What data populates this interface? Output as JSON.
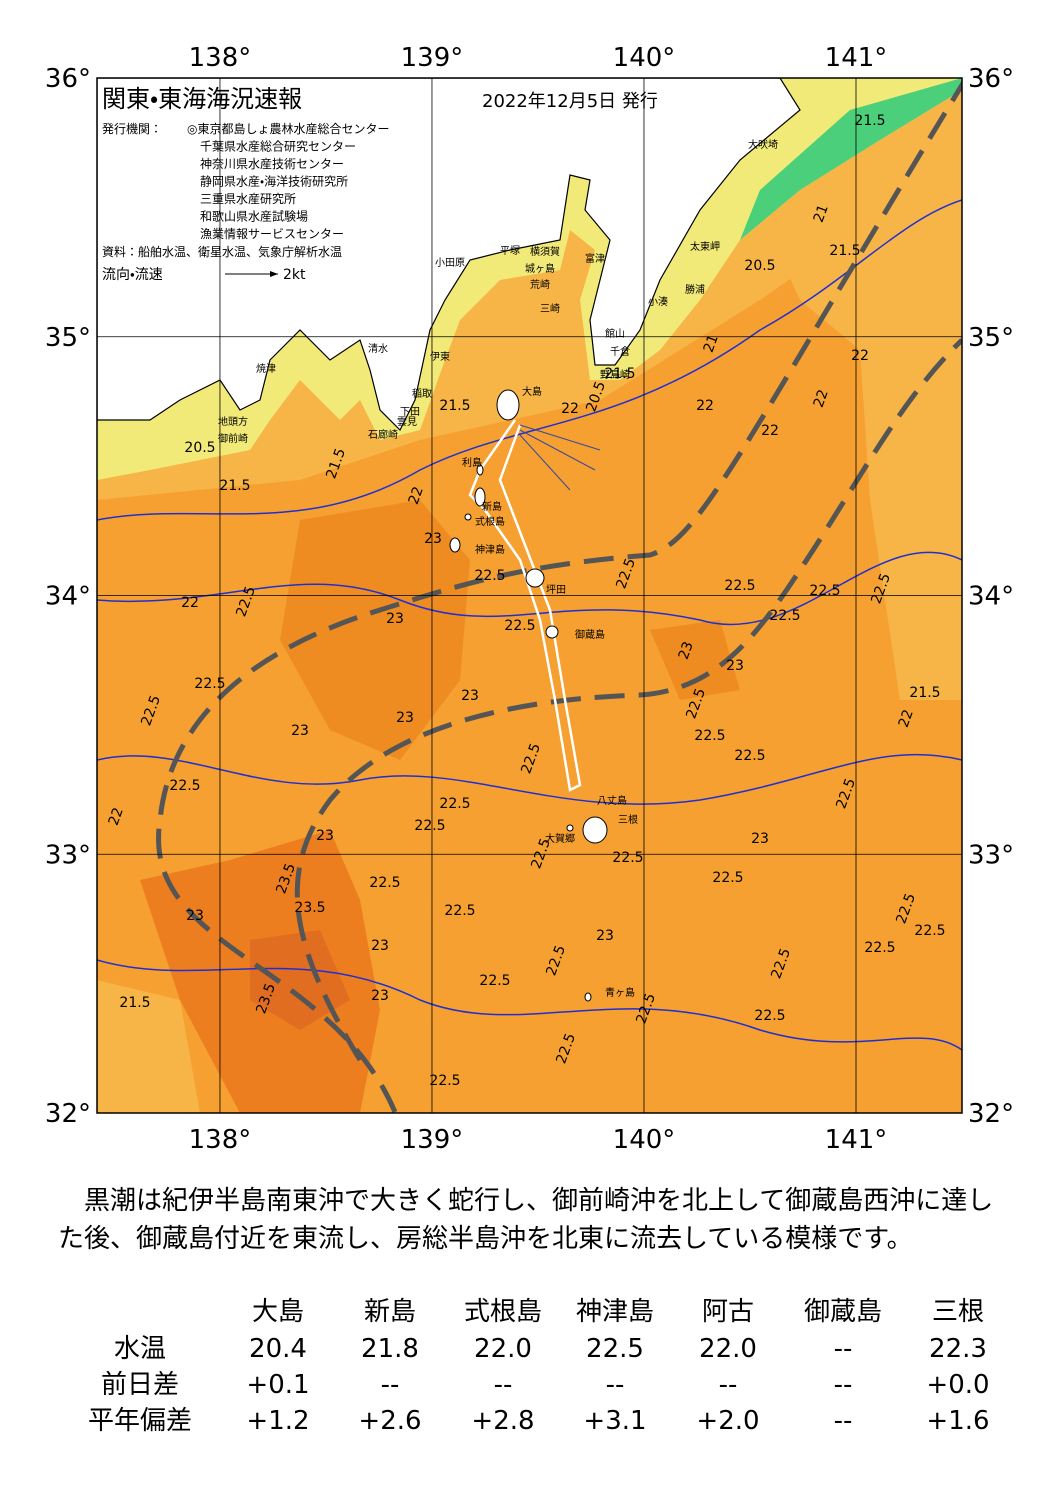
{
  "header": {
    "title": "関東・東海海況速報",
    "date": "2022年12月5日 発行",
    "issuer_label": "発行機関：",
    "issuers": [
      "◎東京都島しょ農林水産総合センター",
      "千葉県水産総合研究センター",
      "神奈川県水産技術センター",
      "静岡県水産・海洋技術研究所",
      "三重県水産研究所",
      "和歌山県水産試験場",
      "漁業情報サービスセンター"
    ],
    "source": "資料：船舶水温、衛星水温、気象庁解析水温",
    "legend_label": "流向・流速",
    "legend_speed": "2kt"
  },
  "map": {
    "lon_range": [
      137.42,
      141.5
    ],
    "lat_range": [
      32,
      36
    ],
    "grid": true,
    "lon_ticks": [
      {
        "value": 138,
        "label": "138°"
      },
      {
        "value": 139,
        "label": "139°"
      },
      {
        "value": 140,
        "label": "140°"
      },
      {
        "value": 141,
        "label": "141°"
      }
    ],
    "lat_ticks": [
      {
        "value": 32,
        "label": "32°"
      },
      {
        "value": 33,
        "label": "33°"
      },
      {
        "value": 34,
        "label": "34°"
      },
      {
        "value": 35,
        "label": "35°"
      },
      {
        "value": 36,
        "label": "36°"
      }
    ],
    "places": [
      "大吠埼",
      "太東岬",
      "勝浦",
      "小湊",
      "館山",
      "千倉",
      "野島崎",
      "富津",
      "横須賀",
      "城ヶ島",
      "荒崎",
      "三崎",
      "平塚",
      "小田原",
      "伊東",
      "稲取",
      "下田",
      "雲見",
      "石廊崎",
      "清水",
      "焼津",
      "地頭方",
      "御前崎",
      "大島",
      "利島",
      "新島",
      "式根島",
      "神津島",
      "坪田",
      "御蔵島",
      "八丈島",
      "三根",
      "大賀郷",
      "青ヶ島"
    ],
    "contour_labels": [
      21.5,
      21,
      20.5,
      21.5,
      21,
      22,
      21.5,
      20.5,
      22,
      22,
      22,
      22,
      21.5,
      21.5,
      20.5,
      21.5,
      22,
      23,
      22.5,
      22.5,
      22.5,
      22.5,
      22.5,
      22.5,
      22,
      22.5,
      23,
      22.5,
      23,
      23,
      22.5,
      22.5,
      23,
      21.5,
      22,
      23,
      23,
      22.5,
      22.5,
      22.5,
      22.5,
      22.5,
      22.5,
      22,
      23,
      22.5,
      22.5,
      22.5,
      23,
      22.5,
      22.5,
      22.5,
      23.5,
      23,
      23.5,
      22.5,
      22.5,
      22.5,
      22.5,
      23,
      22.5,
      22.5,
      23,
      22.5,
      23.5,
      23,
      21.5,
      22.5,
      22.5,
      22.5,
      22.5
    ]
  },
  "summary": "黒潮は紀伊半島南東沖で大きく蛇行し、御前崎沖を北上して御蔵島西沖に達した後、御蔵島付近を東流し、房総半島沖を北東に流去している模様です。",
  "table": {
    "columns": [
      "大島",
      "新島",
      "式根島",
      "神津島",
      "阿古",
      "御蔵島",
      "三根"
    ],
    "rows": [
      {
        "label": "水温",
        "values": [
          "20.4",
          "21.8",
          "22.0",
          "22.5",
          "22.0",
          "--",
          "22.3"
        ]
      },
      {
        "label": "前日差",
        "values": [
          "+0.1",
          "--",
          "--",
          "--",
          "--",
          "--",
          "+0.0"
        ]
      },
      {
        "label": "平年偏差",
        "values": [
          "+1.2",
          "+2.6",
          "+2.8",
          "+3.1",
          "+2.0",
          "--",
          "+1.6"
        ]
      }
    ]
  }
}
